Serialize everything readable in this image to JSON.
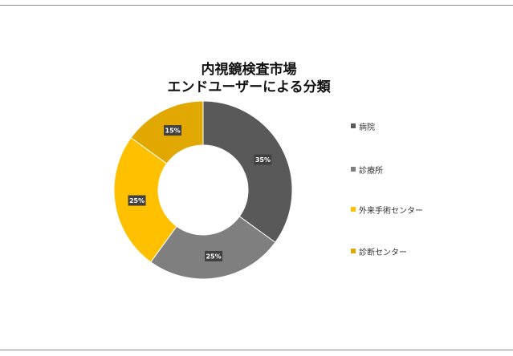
{
  "chart_data": {
    "type": "pie",
    "title": [
      "内視鏡検査市場",
      "エンドユーザーによる分類"
    ],
    "categories": [
      "病院",
      "診療所",
      "外来手術センター",
      "診断センター"
    ],
    "values": [
      35,
      25,
      25,
      15
    ],
    "labels": [
      "35%",
      "25%",
      "25%",
      "15%"
    ],
    "colors": [
      "#595959",
      "#7f7f7f",
      "#ffc000",
      "#e0a800"
    ],
    "legend": "right",
    "donut": true
  }
}
